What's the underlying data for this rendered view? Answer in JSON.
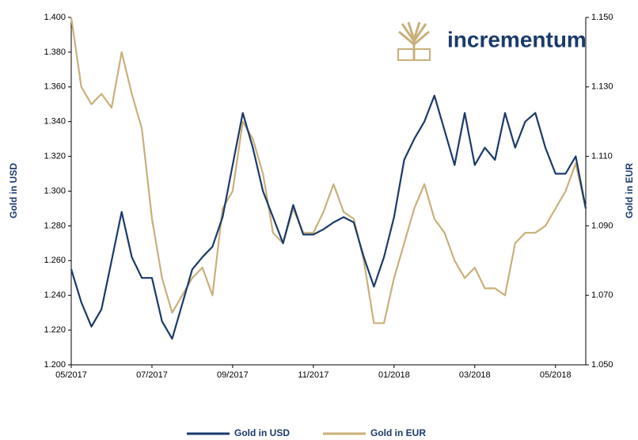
{
  "chart_data": {
    "type": "line",
    "logo_text": "incrementum",
    "y_label": "Gold in USD",
    "y2_label": "Gold in EUR",
    "categories": [
      "05/2017",
      null,
      null,
      null,
      null,
      null,
      null,
      null,
      "07/2017",
      null,
      null,
      null,
      null,
      null,
      null,
      null,
      "09/2017",
      null,
      null,
      null,
      null,
      null,
      null,
      null,
      "11/2017",
      null,
      null,
      null,
      null,
      null,
      null,
      null,
      "01/2018",
      null,
      null,
      null,
      null,
      null,
      null,
      null,
      "03/2018",
      null,
      null,
      null,
      null,
      null,
      null,
      null,
      "05/2018",
      null,
      null,
      null
    ],
    "series": [
      {
        "name": "Gold in USD",
        "color": "#1b3a6b",
        "axis": "y",
        "values": [
          1.255,
          1.236,
          1.222,
          1.232,
          1.26,
          1.288,
          1.262,
          1.25,
          1.25,
          1.225,
          1.215,
          1.235,
          1.255,
          1.262,
          1.268,
          1.285,
          1.315,
          1.345,
          1.325,
          1.3,
          1.285,
          1.27,
          1.292,
          1.275,
          1.275,
          1.278,
          1.282,
          1.285,
          1.282,
          1.262,
          1.245,
          1.262,
          1.285,
          1.318,
          1.33,
          1.34,
          1.355,
          1.335,
          1.315,
          1.345,
          1.315,
          1.325,
          1.318,
          1.345,
          1.325,
          1.34,
          1.345,
          1.325,
          1.31,
          1.31,
          1.32,
          1.29
        ]
      },
      {
        "name": "Gold in EUR",
        "color": "#c9b07a",
        "axis": "y2",
        "values": [
          1.15,
          1.13,
          1.125,
          1.128,
          1.124,
          1.14,
          1.128,
          1.118,
          1.092,
          1.075,
          1.065,
          1.07,
          1.075,
          1.078,
          1.07,
          1.095,
          1.1,
          1.12,
          1.115,
          1.105,
          1.088,
          1.085,
          1.095,
          1.088,
          1.088,
          1.094,
          1.102,
          1.094,
          1.092,
          1.08,
          1.062,
          1.062,
          1.075,
          1.085,
          1.095,
          1.102,
          1.092,
          1.088,
          1.08,
          1.075,
          1.078,
          1.072,
          1.072,
          1.07,
          1.085,
          1.088,
          1.088,
          1.09,
          1.095,
          1.1,
          1.108,
          1.095
        ]
      }
    ],
    "ylim": [
      1.2,
      1.4
    ],
    "yticks": [
      {
        "value": 1.2,
        "label": "1.200"
      },
      {
        "value": 1.22,
        "label": "1.220"
      },
      {
        "value": 1.24,
        "label": "1.240"
      },
      {
        "value": 1.26,
        "label": "1.260"
      },
      {
        "value": 1.28,
        "label": "1.280"
      },
      {
        "value": 1.3,
        "label": "1.300"
      },
      {
        "value": 1.32,
        "label": "1.320"
      },
      {
        "value": 1.34,
        "label": "1.340"
      },
      {
        "value": 1.36,
        "label": "1.360"
      },
      {
        "value": 1.38,
        "label": "1.380"
      },
      {
        "value": 1.4,
        "label": "1.400"
      }
    ],
    "y2lim": [
      1.05,
      1.15
    ],
    "y2ticks": [
      {
        "value": 1.05,
        "label": "1.050"
      },
      {
        "value": 1.07,
        "label": "1.070"
      },
      {
        "value": 1.09,
        "label": "1.090"
      },
      {
        "value": 1.11,
        "label": "1.110"
      },
      {
        "value": 1.13,
        "label": "1.130"
      },
      {
        "value": 1.15,
        "label": "1.150"
      }
    ],
    "grid": false,
    "legend": "bottom"
  }
}
